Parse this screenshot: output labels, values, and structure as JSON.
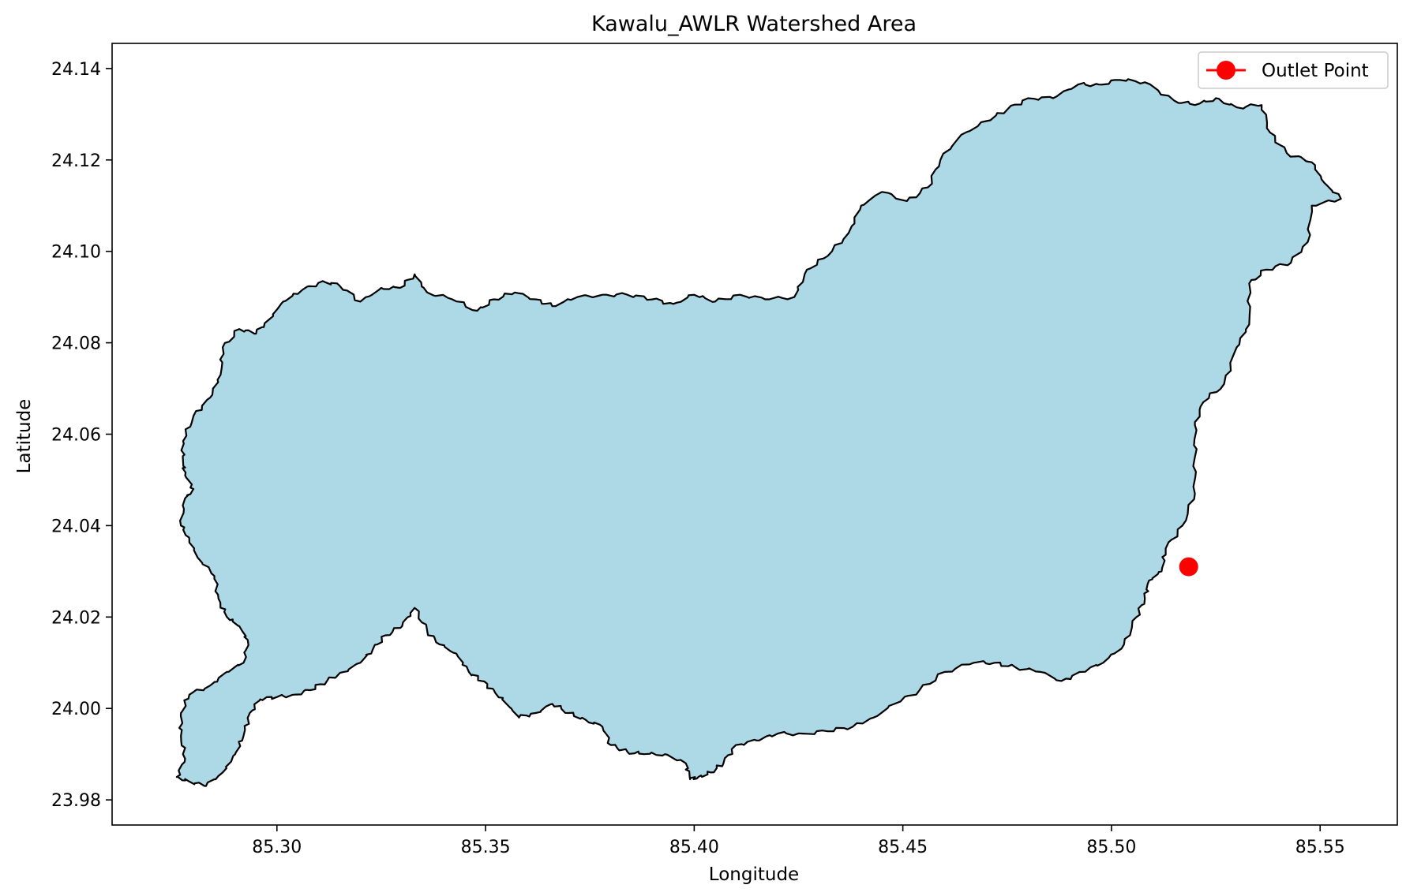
{
  "chart_data": {
    "type": "map",
    "title": "Kawalu_AWLR Watershed Area",
    "xlabel": "Longitude",
    "ylabel": "Latitude",
    "xlim": [
      85.2605,
      85.5685
    ],
    "ylim": [
      23.9745,
      24.1455
    ],
    "xticks": [
      85.3,
      85.35,
      85.4,
      85.45,
      85.5,
      85.55
    ],
    "yticks": [
      23.98,
      24.0,
      24.02,
      24.04,
      24.06,
      24.08,
      24.1,
      24.12,
      24.14
    ],
    "xtick_labels": [
      "85.30",
      "85.35",
      "85.40",
      "85.45",
      "85.50",
      "85.55"
    ],
    "ytick_labels": [
      "23.98",
      "24.00",
      "24.02",
      "24.04",
      "24.06",
      "24.08",
      "24.10",
      "24.12",
      "24.14"
    ],
    "grid": false,
    "legend_position": "top-right",
    "watershed": {
      "fill_color": "#add8e6",
      "edge_color": "#000000",
      "boundary": [
        [
          85.2775,
          24.0585
        ],
        [
          85.28,
          24.064
        ],
        [
          85.284,
          24.068
        ],
        [
          85.2865,
          24.073
        ],
        [
          85.287,
          24.079
        ],
        [
          85.291,
          24.083
        ],
        [
          85.295,
          24.082
        ],
        [
          85.298,
          24.085
        ],
        [
          85.3015,
          24.089
        ],
        [
          85.306,
          24.0915
        ],
        [
          85.311,
          24.0935
        ],
        [
          85.315,
          24.0925
        ],
        [
          85.32,
          24.089
        ],
        [
          85.325,
          24.092
        ],
        [
          85.3295,
          24.092
        ],
        [
          85.333,
          24.095
        ],
        [
          85.336,
          24.091
        ],
        [
          85.342,
          24.0895
        ],
        [
          85.348,
          24.087
        ],
        [
          85.352,
          24.0895
        ],
        [
          85.357,
          24.091
        ],
        [
          85.362,
          24.0895
        ],
        [
          85.366,
          24.088
        ],
        [
          85.372,
          24.09
        ],
        [
          85.378,
          24.0905
        ],
        [
          85.384,
          24.0905
        ],
        [
          85.39,
          24.0895
        ],
        [
          85.395,
          24.0885
        ],
        [
          85.4,
          24.0905
        ],
        [
          85.405,
          24.089
        ],
        [
          85.411,
          24.0905
        ],
        [
          85.417,
          24.0895
        ],
        [
          85.424,
          24.09
        ],
        [
          85.427,
          24.096
        ],
        [
          85.432,
          24.099
        ],
        [
          85.437,
          24.104
        ],
        [
          85.44,
          24.11
        ],
        [
          85.445,
          24.113
        ],
        [
          85.451,
          24.111
        ],
        [
          85.456,
          24.114
        ],
        [
          85.459,
          24.12
        ],
        [
          85.464,
          24.1255
        ],
        [
          85.47,
          24.1285
        ],
        [
          85.475,
          24.131
        ],
        [
          85.48,
          24.1335
        ],
        [
          85.486,
          24.1335
        ],
        [
          85.492,
          24.1365
        ],
        [
          85.497,
          24.1365
        ],
        [
          85.502,
          24.1375
        ],
        [
          85.508,
          24.137
        ],
        [
          85.515,
          24.133
        ],
        [
          85.52,
          24.132
        ],
        [
          85.525,
          24.1335
        ],
        [
          85.53,
          24.1315
        ],
        [
          85.536,
          24.132
        ],
        [
          85.538,
          24.126
        ],
        [
          85.542,
          24.1215
        ],
        [
          85.548,
          24.1195
        ],
        [
          85.551,
          24.115
        ],
        [
          85.555,
          24.1115
        ],
        [
          85.548,
          24.11
        ],
        [
          85.547,
          24.102
        ],
        [
          85.543,
          24.0975
        ],
        [
          85.537,
          24.096
        ],
        [
          85.533,
          24.093
        ],
        [
          85.533,
          24.084
        ],
        [
          85.53,
          24.079
        ],
        [
          85.527,
          24.071
        ],
        [
          85.522,
          24.067
        ],
        [
          85.52,
          24.062
        ],
        [
          85.52,
          24.055
        ],
        [
          85.52,
          24.047
        ],
        [
          85.517,
          24.04
        ],
        [
          85.513,
          24.035
        ],
        [
          85.512,
          24.03
        ],
        [
          85.509,
          24.028
        ],
        [
          85.508,
          24.024
        ],
        [
          85.506,
          24.02
        ],
        [
          85.503,
          24.014
        ],
        [
          85.498,
          24.01
        ],
        [
          85.493,
          24.008
        ],
        [
          85.488,
          24.006
        ],
        [
          85.483,
          24.008
        ],
        [
          85.477,
          24.009
        ],
        [
          85.472,
          24.01
        ],
        [
          85.467,
          24.01
        ],
        [
          85.46,
          24.008
        ],
        [
          85.454,
          24.004
        ],
        [
          85.448,
          24.001
        ],
        [
          85.443,
          23.998
        ],
        [
          85.438,
          23.996
        ],
        [
          85.432,
          23.995
        ],
        [
          85.426,
          23.9945
        ],
        [
          85.42,
          23.9945
        ],
        [
          85.415,
          23.993
        ],
        [
          85.41,
          23.992
        ],
        [
          85.407,
          23.988
        ],
        [
          85.404,
          23.986
        ],
        [
          85.401,
          23.985
        ],
        [
          85.399,
          23.9845
        ],
        [
          85.398,
          23.988
        ],
        [
          85.393,
          23.99
        ],
        [
          85.388,
          23.99
        ],
        [
          85.384,
          23.9905
        ],
        [
          85.38,
          23.992
        ],
        [
          85.378,
          23.996
        ],
        [
          85.374,
          23.9975
        ],
        [
          85.37,
          23.999
        ],
        [
          85.366,
          24.001
        ],
        [
          85.362,
          23.999
        ],
        [
          85.358,
          23.998
        ],
        [
          85.355,
          24.001
        ],
        [
          85.352,
          24.004
        ],
        [
          85.349,
          24.006
        ],
        [
          85.346,
          24.008
        ],
        [
          85.343,
          24.012
        ],
        [
          85.339,
          24.014
        ],
        [
          85.336,
          24.017
        ],
        [
          85.333,
          24.022
        ],
        [
          85.33,
          24.018
        ],
        [
          85.326,
          24.016
        ],
        [
          85.323,
          24.013
        ],
        [
          85.32,
          24.01
        ],
        [
          85.316,
          24.008
        ],
        [
          85.312,
          24.006
        ],
        [
          85.308,
          24.004
        ],
        [
          85.304,
          24.003
        ],
        [
          85.3,
          24.0025
        ],
        [
          85.296,
          24.002
        ],
        [
          85.2935,
          23.999
        ],
        [
          85.292,
          23.994
        ],
        [
          85.29,
          23.99
        ],
        [
          85.287,
          23.986
        ],
        [
          85.283,
          23.983
        ],
        [
          85.279,
          23.984
        ],
        [
          85.276,
          23.985
        ],
        [
          85.278,
          23.989
        ],
        [
          85.277,
          23.994
        ],
        [
          85.277,
          23.999
        ],
        [
          85.279,
          24.003
        ],
        [
          85.284,
          24.005
        ],
        [
          85.288,
          24.008
        ],
        [
          85.292,
          24.01
        ],
        [
          85.293,
          24.015
        ],
        [
          85.291,
          24.018
        ],
        [
          85.288,
          24.02
        ],
        [
          85.286,
          24.024
        ],
        [
          85.285,
          24.029
        ],
        [
          85.281,
          24.033
        ],
        [
          85.279,
          24.037
        ],
        [
          85.277,
          24.04
        ],
        [
          85.278,
          24.046
        ],
        [
          85.28,
          24.048
        ],
        [
          85.278,
          24.051
        ],
        [
          85.2775,
          24.054
        ],
        [
          85.2775,
          24.0585
        ]
      ]
    },
    "outlet": {
      "label": "Outlet Point",
      "lon": 85.5185,
      "lat": 24.031,
      "color": "#ff0000"
    }
  }
}
